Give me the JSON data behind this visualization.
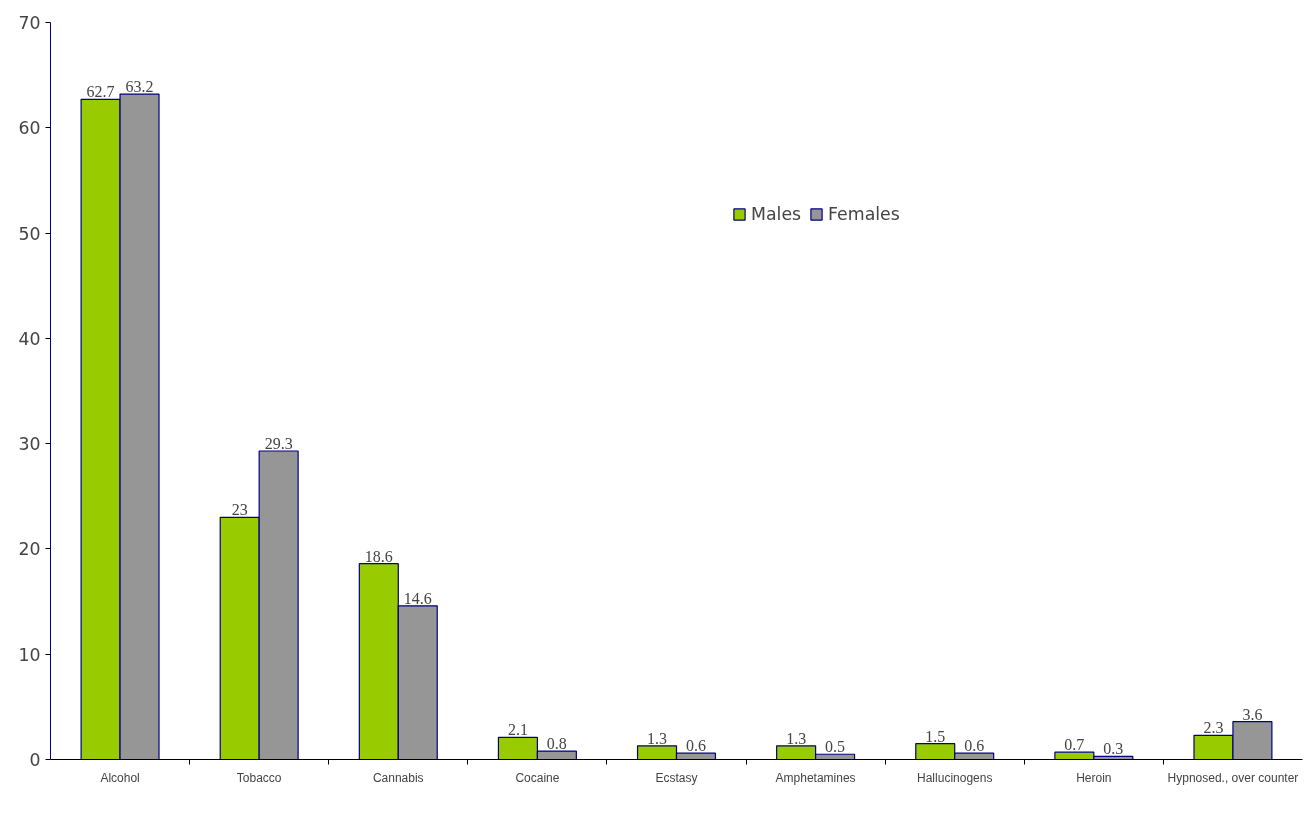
{
  "chart_data": {
    "type": "bar",
    "categories": [
      "Alcohol",
      "Tobacco",
      "Cannabis",
      "Cocaine",
      "Ecstasy",
      "Amphetamines",
      "Hallucinogens",
      "Heroin",
      "Hypnosed., over counter"
    ],
    "series": [
      {
        "name": "Males",
        "color": "#99cc00",
        "values": [
          62.7,
          23,
          18.6,
          2.1,
          1.3,
          1.3,
          1.5,
          0.7,
          2.3
        ]
      },
      {
        "name": "Females",
        "color": "#969696",
        "values": [
          63.2,
          29.3,
          14.6,
          0.8,
          0.6,
          0.5,
          0.6,
          0.3,
          3.6
        ]
      }
    ],
    "ylim": [
      0,
      70
    ],
    "yticks": [
      0,
      10,
      20,
      30,
      40,
      50,
      60,
      70
    ],
    "grid": false,
    "legend": "top right",
    "data_labels": true
  }
}
